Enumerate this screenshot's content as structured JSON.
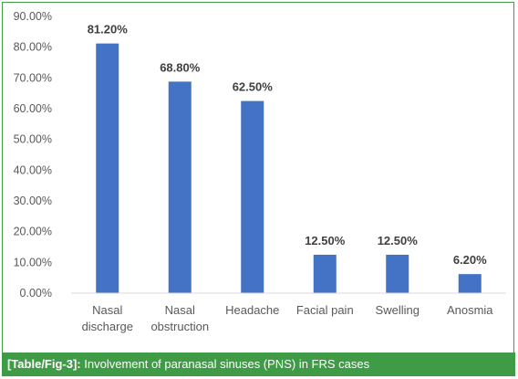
{
  "chart_data": {
    "type": "bar",
    "categories": [
      [
        "Nasal",
        "discharge"
      ],
      [
        "Nasal",
        "obstruction"
      ],
      [
        "Headache"
      ],
      [
        "Facial pain"
      ],
      [
        "Swelling"
      ],
      [
        "Anosmia"
      ]
    ],
    "values": [
      81.2,
      68.8,
      62.5,
      12.5,
      12.5,
      6.2
    ],
    "data_labels": [
      "81.20%",
      "68.80%",
      "62.50%",
      "12.50%",
      "12.50%",
      "6.20%"
    ],
    "yticks": [
      "0.00%",
      "10.00%",
      "20.00%",
      "30.00%",
      "40.00%",
      "50.00%",
      "60.00%",
      "70.00%",
      "80.00%",
      "90.00%"
    ],
    "ylim": [
      0,
      90
    ],
    "bar_color": "#4472c4",
    "grid": false
  },
  "caption": {
    "tag": "[Table/Fig-3]:",
    "text": " Involvement of paranasal sinuses (PNS) in FRS cases"
  },
  "colors": {
    "accent": "#3f9b45"
  }
}
